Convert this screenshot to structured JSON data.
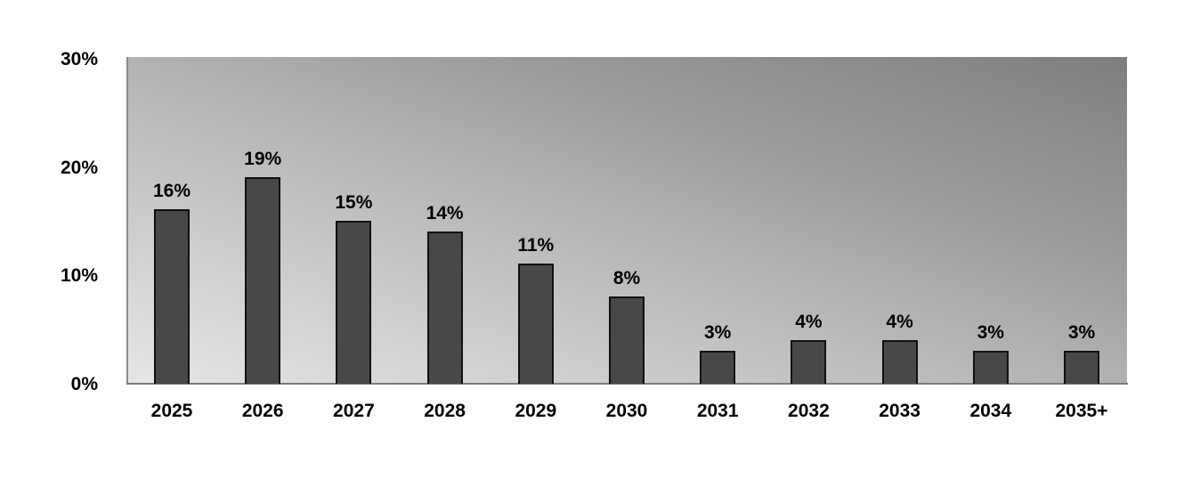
{
  "chart_data": {
    "type": "bar",
    "title": "",
    "xlabel": "",
    "ylabel": "",
    "ylim": [
      0,
      30
    ],
    "yticks": [
      "0%",
      "10%",
      "20%",
      "30%"
    ],
    "categories": [
      "2025",
      "2026",
      "2027",
      "2028",
      "2029",
      "2030",
      "2031",
      "2032",
      "2033",
      "2034",
      "2035+"
    ],
    "values": [
      16,
      19,
      15,
      14,
      11,
      8,
      3,
      4,
      4,
      3,
      3
    ],
    "data_labels": [
      "16%",
      "19%",
      "15%",
      "14%",
      "11%",
      "8%",
      "3%",
      "4%",
      "4%",
      "3%",
      "3%"
    ],
    "grid": false,
    "legend": null,
    "colors": {
      "bar": "#484848",
      "bar_border": "#111111",
      "background_light": "#e6e6e6",
      "background_dark": "#7e7e7e"
    }
  }
}
